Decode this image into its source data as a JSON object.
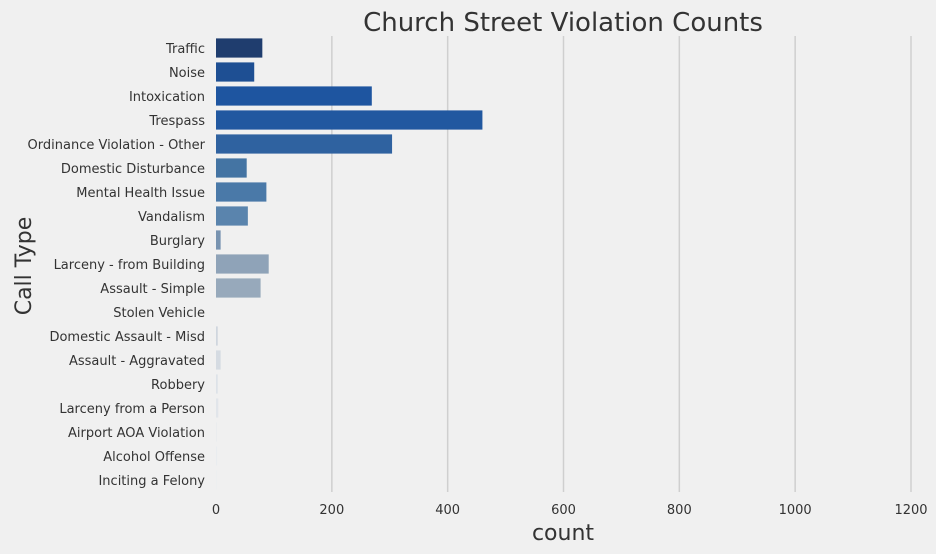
{
  "chart_data": {
    "type": "bar",
    "orientation": "horizontal",
    "title": "Church Street Violation Counts",
    "xlabel": "count",
    "ylabel": "Call Type",
    "xlim": [
      0,
      1200
    ],
    "xticks": [
      0,
      200,
      400,
      600,
      800,
      1000,
      1200
    ],
    "grid": "vertical",
    "legend": "none",
    "categories": [
      "Traffic",
      "Noise",
      "Intoxication",
      "Trespass",
      "Ordinance Violation - Other",
      "Domestic Disturbance",
      "Mental Health Issue",
      "Vandalism",
      "Burglary",
      "Larceny - from Building",
      "Assault - Simple",
      "Stolen Vehicle",
      "Domestic Assault - Misd",
      "Assault - Aggravated",
      "Robbery",
      "Larceny from a Person",
      "Airport AOA Violation",
      "Alcohol Offense",
      "Inciting a Felony"
    ],
    "values": [
      80,
      66,
      269,
      460,
      304,
      53,
      87,
      55,
      8,
      91,
      77,
      0,
      3,
      8,
      3,
      4,
      1,
      2,
      1
    ],
    "colors": [
      "#1f3d6e",
      "#1e4f93",
      "#1e55a0",
      "#2158a0",
      "#2f62a0",
      "#4474a3",
      "#4a79a8",
      "#5a84ad",
      "#7893b0",
      "#8fa3b8",
      "#97a9bb",
      "#c6ced8",
      "#cfd6de",
      "#d5dbe2",
      "#dde2e8",
      "#e1e5ea",
      "#e6e9ed",
      "#e9ecef",
      "#ebeef0"
    ],
    "grid_color": "#cfcfcf",
    "background": "#f0f0f0"
  }
}
